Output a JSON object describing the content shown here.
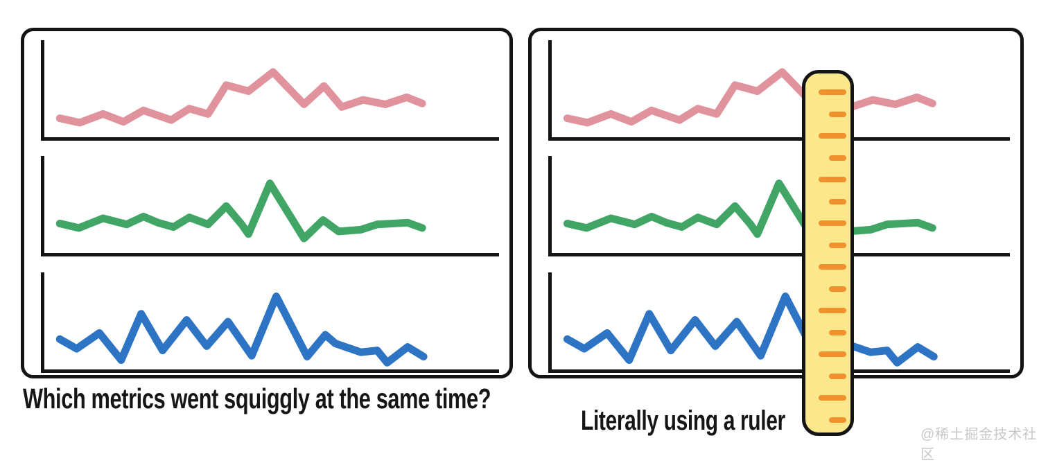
{
  "left_panel": {
    "caption": "Which metrics went squiggly at the same time?"
  },
  "right_panel": {
    "caption": "Literally using a ruler"
  },
  "watermark": "@稀土掘金技术社区",
  "colors": {
    "axis": "#141414",
    "panel_border": "#141414",
    "pink": "#e0939c",
    "green": "#41a566",
    "blue": "#2e74c4",
    "ruler_body": "#fbe88c",
    "ruler_tick": "#f0912d",
    "caption_text": "#161616",
    "watermark_text": "#c7c7c7"
  },
  "ruler": {
    "tick_count": 16,
    "tick_spacing": 31.5,
    "first_tick_offset": 23,
    "long_tick_width": 40,
    "short_tick_width": 25,
    "pattern": "alternating long/short, starting long"
  },
  "chart_data": {
    "type": "line",
    "title": "",
    "xlabel": "",
    "ylabel": "",
    "note": "Three unlabeled sparkline charts (no ticks, no gridlines, no legend) shown identically in both panels; values normalized 0-1 of each mini-chart plot area",
    "x_range": [
      0,
      1
    ],
    "y_range": [
      0,
      1
    ],
    "grid": false,
    "legend": false,
    "series": [
      {
        "name": "pink-metric",
        "color_key": "pink",
        "x": [
          0.034,
          0.078,
          0.129,
          0.174,
          0.218,
          0.279,
          0.319,
          0.36,
          0.4,
          0.449,
          0.503,
          0.571,
          0.615,
          0.654,
          0.701,
          0.75,
          0.797,
          0.831
        ],
        "y": [
          0.18,
          0.13,
          0.23,
          0.14,
          0.27,
          0.16,
          0.29,
          0.23,
          0.56,
          0.49,
          0.71,
          0.34,
          0.55,
          0.31,
          0.39,
          0.34,
          0.42,
          0.35
        ]
      },
      {
        "name": "green-metric",
        "color_key": "green",
        "x": [
          0.034,
          0.076,
          0.129,
          0.181,
          0.218,
          0.25,
          0.284,
          0.319,
          0.36,
          0.4,
          0.434,
          0.449,
          0.496,
          0.571,
          0.613,
          0.647,
          0.696,
          0.732,
          0.799,
          0.831
        ],
        "y": [
          0.3,
          0.25,
          0.36,
          0.29,
          0.38,
          0.31,
          0.26,
          0.37,
          0.29,
          0.5,
          0.29,
          0.18,
          0.76,
          0.13,
          0.34,
          0.21,
          0.23,
          0.29,
          0.31,
          0.25
        ]
      },
      {
        "name": "blue-metric",
        "color_key": "blue",
        "x": [
          0.034,
          0.071,
          0.121,
          0.169,
          0.213,
          0.26,
          0.313,
          0.357,
          0.404,
          0.456,
          0.51,
          0.578,
          0.618,
          0.64,
          0.696,
          0.732,
          0.754,
          0.799,
          0.834
        ],
        "y": [
          0.31,
          0.2,
          0.38,
          0.07,
          0.6,
          0.18,
          0.53,
          0.23,
          0.51,
          0.12,
          0.8,
          0.11,
          0.36,
          0.26,
          0.16,
          0.18,
          0.04,
          0.22,
          0.11
        ]
      }
    ]
  }
}
